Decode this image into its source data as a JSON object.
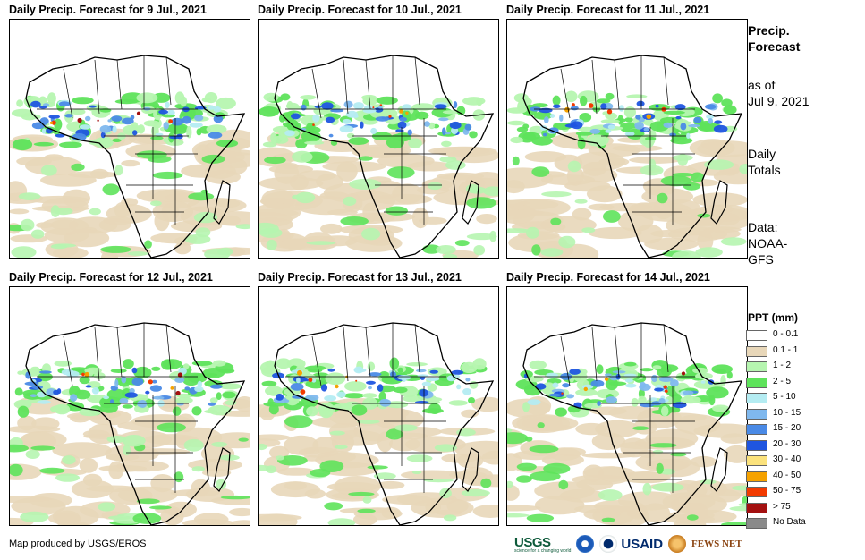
{
  "panels": [
    {
      "title": "Daily Precip. Forecast for 9 Jul., 2021"
    },
    {
      "title": "Daily Precip. Forecast for 10 Jul., 2021"
    },
    {
      "title": "Daily Precip. Forecast for 11 Jul., 2021"
    },
    {
      "title": "Daily Precip. Forecast for 12 Jul., 2021"
    },
    {
      "title": "Daily Precip. Forecast for 13 Jul., 2021"
    },
    {
      "title": "Daily Precip. Forecast for 14 Jul., 2021"
    }
  ],
  "sidebar": {
    "heading_line1": "Precip.",
    "heading_line2": "Forecast",
    "asof_line1": "as of",
    "asof_line2": "Jul 9, 2021",
    "totals_line1": "Daily",
    "totals_line2": "Totals",
    "data_line1": "Data:",
    "data_line2": "NOAA-",
    "data_line3": "GFS"
  },
  "legend": {
    "title": "PPT (mm)",
    "items": [
      {
        "label": "0 - 0.1",
        "color": "#ffffff"
      },
      {
        "label": "0.1 - 1",
        "color": "#e8d7b9"
      },
      {
        "label": "1 - 2",
        "color": "#b6f5b0"
      },
      {
        "label": "2 - 5",
        "color": "#5ee35b"
      },
      {
        "label": "5 - 10",
        "color": "#b4ecf2"
      },
      {
        "label": "10 - 15",
        "color": "#7fb8ee"
      },
      {
        "label": "15 - 20",
        "color": "#4a8ae6"
      },
      {
        "label": "20 - 30",
        "color": "#1f55e0"
      },
      {
        "label": "30 - 40",
        "color": "#fbe27c"
      },
      {
        "label": "40 - 50",
        "color": "#f5a200"
      },
      {
        "label": "50 - 75",
        "color": "#f23a00"
      },
      {
        "label": "> 75",
        "color": "#a31010"
      },
      {
        "label": "No Data",
        "color": "#8a8a8a"
      }
    ]
  },
  "footer": {
    "credit": "Map produced by USGS/EROS"
  },
  "logos": {
    "usgs": "USGS",
    "usgs_tagline": "science for a changing world",
    "usaid": "USAID",
    "fews": "FEWS NET"
  }
}
